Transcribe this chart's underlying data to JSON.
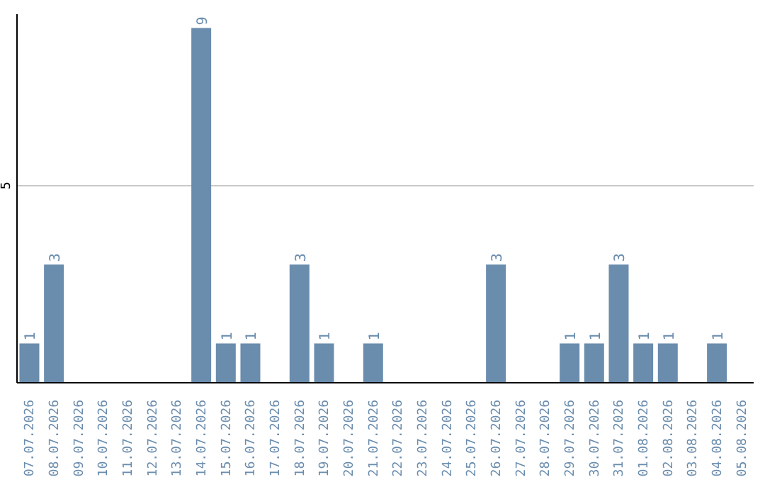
{
  "chart_data": {
    "type": "bar",
    "categories": [
      "07.07.2026",
      "08.07.2026",
      "09.07.2026",
      "10.07.2026",
      "11.07.2026",
      "12.07.2026",
      "13.07.2026",
      "14.07.2026",
      "15.07.2026",
      "16.07.2026",
      "17.07.2026",
      "18.07.2026",
      "19.07.2026",
      "20.07.2026",
      "21.07.2026",
      "22.07.2026",
      "23.07.2026",
      "24.07.2026",
      "25.07.2026",
      "26.07.2026",
      "27.07.2026",
      "28.07.2026",
      "29.07.2026",
      "30.07.2026",
      "31.07.2026",
      "01.08.2026",
      "02.08.2026",
      "03.08.2026",
      "04.08.2026",
      "05.08.2026"
    ],
    "values": [
      1,
      3,
      0,
      0,
      0,
      0,
      0,
      9,
      1,
      1,
      0,
      3,
      1,
      0,
      1,
      0,
      0,
      0,
      0,
      3,
      0,
      0,
      1,
      1,
      3,
      1,
      1,
      0,
      1,
      0
    ],
    "value_labels": [
      "1",
      "3",
      null,
      null,
      null,
      null,
      null,
      "9",
      "1",
      "1",
      null,
      "3",
      "1",
      null,
      "1",
      null,
      null,
      null,
      null,
      "3",
      null,
      null,
      "1",
      "1",
      "3",
      "1",
      "1",
      null,
      "1",
      null
    ],
    "color": "#6a8cad",
    "ylim": [
      0,
      9.35
    ],
    "yticks": [
      5
    ],
    "grid": "y"
  }
}
